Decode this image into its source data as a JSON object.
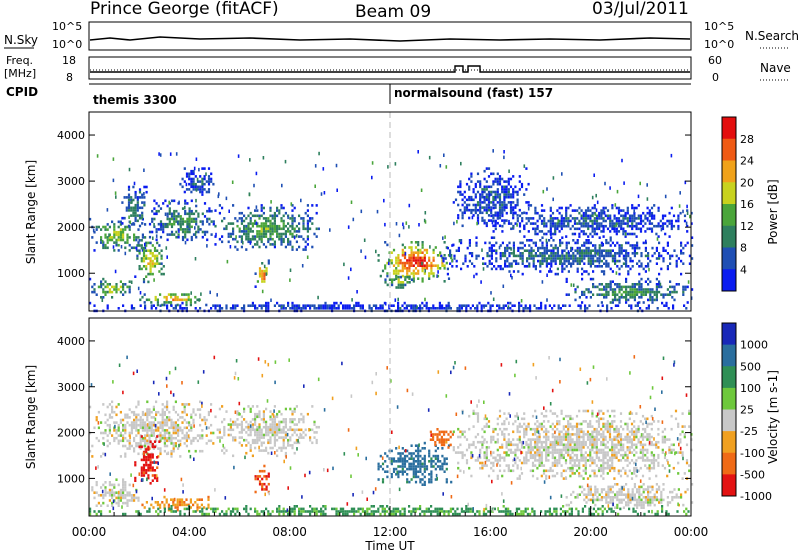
{
  "header": {
    "station": "Prince George (fitACF)",
    "beam": "Beam 09",
    "date": "03/Jul/2011"
  },
  "meta_panels": {
    "nsky_label": "N.Sky",
    "nsky_ticks": [
      "10^5",
      "10^0"
    ],
    "nsearch_label": "N.Search",
    "nsearch_ticks": [
      "10^5",
      "10^0"
    ],
    "freq_label": "Freq.",
    "freq_unit": "[MHz]",
    "freq_ticks": [
      "18",
      "8"
    ],
    "nave_label": "Nave",
    "nave_ticks": [
      "60",
      "0"
    ],
    "cpid_label": "CPID",
    "cpid_segments": [
      "themis 3300",
      "normalsound (fast) 157"
    ]
  },
  "chart_data": [
    {
      "type": "heatmap",
      "name": "power",
      "ylabel": "Slant Range [km]",
      "yticks": [
        "4000",
        "3000",
        "2000",
        "1000"
      ],
      "ylim": [
        180,
        4500
      ],
      "xlim": [
        0,
        24
      ],
      "colorbar_label": "Power [dB]",
      "colorbar_ticks": [
        "28",
        "24",
        "20",
        "16",
        "12",
        "8",
        "4"
      ],
      "colors": [
        "#0a1cf0",
        "#1f4fb4",
        "#2e7f5e",
        "#4aa53a",
        "#c8d21e",
        "#f0a21a",
        "#ef5a14",
        "#e30e0e"
      ],
      "echo_regions": [
        {
          "t": [
            0.0,
            2.2
          ],
          "r": [
            1500,
            2200
          ],
          "level": 0.5
        },
        {
          "t": [
            1.2,
            2.3
          ],
          "r": [
            2000,
            2900
          ],
          "level": 0.3
        },
        {
          "t": [
            2.3,
            5.0
          ],
          "r": [
            1700,
            2600
          ],
          "level": 0.35
        },
        {
          "t": [
            1.8,
            3.0
          ],
          "r": [
            800,
            1800
          ],
          "level": 0.6
        },
        {
          "t": [
            2.0,
            4.8
          ],
          "r": [
            330,
            620
          ],
          "level": 0.65
        },
        {
          "t": [
            0.0,
            1.8
          ],
          "r": [
            500,
            900
          ],
          "level": 0.55
        },
        {
          "t": [
            5.0,
            9.2
          ],
          "r": [
            1500,
            2500
          ],
          "level": 0.4
        },
        {
          "t": [
            6.6,
            7.2
          ],
          "r": [
            700,
            1300
          ],
          "level": 0.75
        },
        {
          "t": [
            3.6,
            5.0
          ],
          "r": [
            2700,
            3300
          ],
          "level": 0.2
        },
        {
          "t": [
            11.5,
            14.5
          ],
          "r": [
            850,
            1700
          ],
          "level": 0.85
        },
        {
          "t": [
            11.6,
            13.0
          ],
          "r": [
            700,
            1000
          ],
          "level": 0.5
        },
        {
          "t": [
            14.0,
            24.0
          ],
          "r": [
            1000,
            1800
          ],
          "level": 0.25
        },
        {
          "t": [
            16.0,
            24.0
          ],
          "r": [
            1800,
            2500
          ],
          "level": 0.2
        },
        {
          "t": [
            14.5,
            17.5
          ],
          "r": [
            2000,
            3300
          ],
          "level": 0.2
        },
        {
          "t": [
            19.0,
            24.0
          ],
          "r": [
            350,
            900
          ],
          "level": 0.35
        },
        {
          "t": [
            0.0,
            24.0
          ],
          "r": [
            200,
            380
          ],
          "level": 0.15
        }
      ]
    },
    {
      "type": "heatmap",
      "name": "velocity",
      "ylabel": "Slant Range [km]",
      "yticks": [
        "4000",
        "3000",
        "2000",
        "1000"
      ],
      "ylim": [
        180,
        4500
      ],
      "xlim": [
        0,
        24
      ],
      "colorbar_label": "Velocity [m s-1]",
      "colorbar_ticks": [
        "1000",
        "500",
        "100",
        "25",
        "-25",
        "-100",
        "-500",
        "-1000"
      ],
      "colors": [
        "#1828b8",
        "#2a6e9e",
        "#2f8f55",
        "#6ec83c",
        "#c8c8c8",
        "#f0a020",
        "#ef6a16",
        "#e31212"
      ],
      "echo_regions": [
        {
          "t": [
            0.0,
            5.0
          ],
          "r": [
            1500,
            2700
          ],
          "v": 0.0
        },
        {
          "t": [
            1.8,
            2.8
          ],
          "r": [
            900,
            2000
          ],
          "v": -0.75
        },
        {
          "t": [
            2.0,
            4.8
          ],
          "r": [
            330,
            620
          ],
          "v": -0.35
        },
        {
          "t": [
            0.0,
            2.0
          ],
          "r": [
            400,
            1000
          ],
          "v": 0.0
        },
        {
          "t": [
            5.0,
            9.2
          ],
          "r": [
            1500,
            2600
          ],
          "v": 0.0
        },
        {
          "t": [
            6.6,
            7.2
          ],
          "r": [
            700,
            1300
          ],
          "v": -0.6
        },
        {
          "t": [
            11.5,
            14.5
          ],
          "r": [
            850,
            1800
          ],
          "v": 0.55
        },
        {
          "t": [
            13.5,
            14.5
          ],
          "r": [
            1700,
            2100
          ],
          "v": -0.5
        },
        {
          "t": [
            14.5,
            24.0
          ],
          "r": [
            1000,
            2500
          ],
          "v": 0.0
        },
        {
          "t": [
            19.0,
            24.0
          ],
          "r": [
            350,
            900
          ],
          "v": 0.0
        },
        {
          "t": [
            0.0,
            24.0
          ],
          "r": [
            200,
            420
          ],
          "v": 0.3
        }
      ]
    }
  ],
  "time_axis": {
    "tick_labels": [
      "00:00",
      "04:00",
      "08:00",
      "12:00",
      "16:00",
      "20:00",
      "00:00"
    ],
    "xlabel": "Time UT"
  }
}
